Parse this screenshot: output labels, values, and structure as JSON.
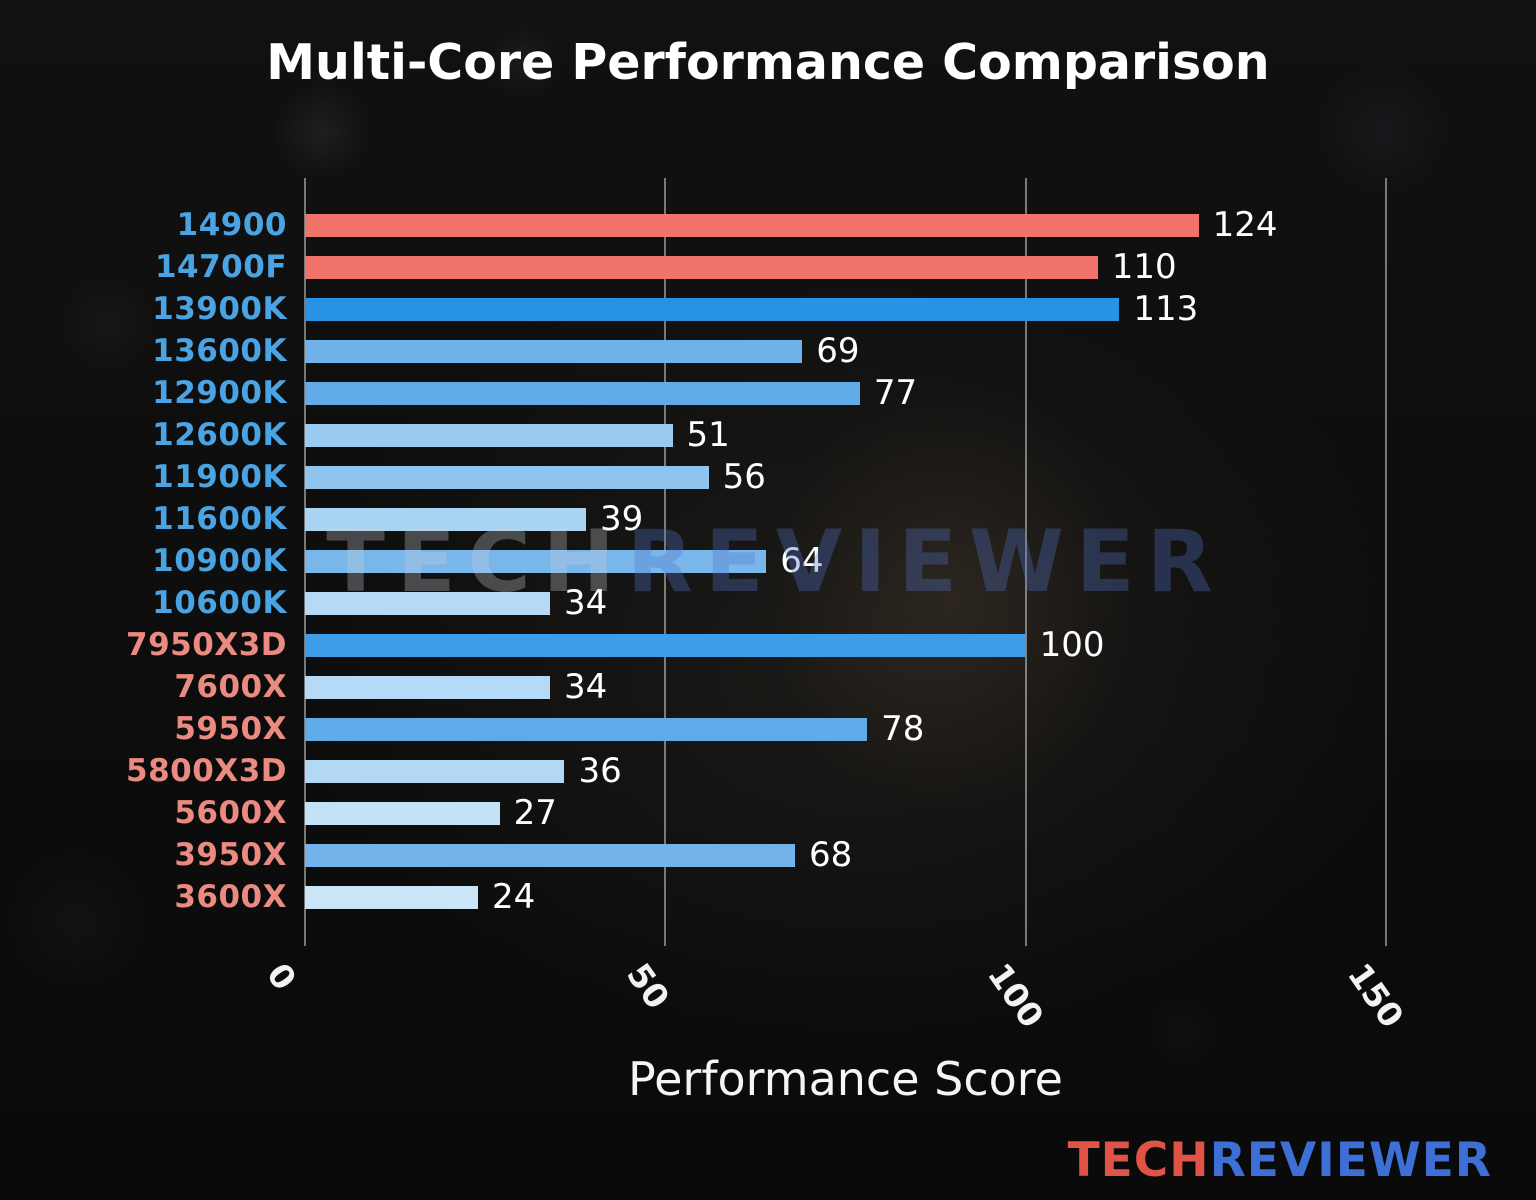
{
  "title": "Multi-Core Performance Comparison",
  "watermark": {
    "part1": "TECH",
    "part2": "REVIEWER",
    "part1_color": "rgba(205,210,220,0.30)",
    "part2_color": "rgba(82,115,200,0.33)"
  },
  "logo": {
    "part1": "TECH",
    "part2": "REVIEWER",
    "part1_color": "#e05347",
    "part2_color": "#3d6fd6"
  },
  "chart_data": {
    "type": "bar",
    "orientation": "horizontal",
    "title": "Multi-Core Performance Comparison",
    "xlabel": "Performance Score",
    "ylabel": "",
    "xlim": [
      0,
      150
    ],
    "xticks": [
      0,
      50,
      100,
      150
    ],
    "grid": true,
    "grid_color": "rgba(225,225,225,0.5)",
    "value_label_color": "#ffffff",
    "categories": [
      "14900",
      "14700F",
      "13900K",
      "13600K",
      "12900K",
      "12600K",
      "11900K",
      "11600K",
      "10900K",
      "10600K",
      "7950X3D",
      "7600X",
      "5950X",
      "5800X3D",
      "5600X",
      "3950X",
      "3600X"
    ],
    "values": [
      124,
      110,
      113,
      69,
      77,
      51,
      56,
      39,
      64,
      34,
      100,
      34,
      78,
      36,
      27,
      68,
      24
    ],
    "bar_colors": [
      "#f0746b",
      "#f0746b",
      "#2892e5",
      "#6fb2ea",
      "#61abe8",
      "#9acaf0",
      "#8fc4ef",
      "#aad4f3",
      "#79b7eb",
      "#b6daf5",
      "#3e9de8",
      "#b6daf5",
      "#5faae8",
      "#b3d8f4",
      "#c3e1f7",
      "#71b3ea",
      "#cbe5f8"
    ],
    "label_colors": [
      "#4aa3e2",
      "#4aa3e2",
      "#4aa3e2",
      "#4aa3e2",
      "#4aa3e2",
      "#4aa3e2",
      "#4aa3e2",
      "#4aa3e2",
      "#4aa3e2",
      "#4aa3e2",
      "#eb8a80",
      "#eb8a80",
      "#eb8a80",
      "#eb8a80",
      "#eb8a80",
      "#eb8a80",
      "#eb8a80"
    ]
  }
}
